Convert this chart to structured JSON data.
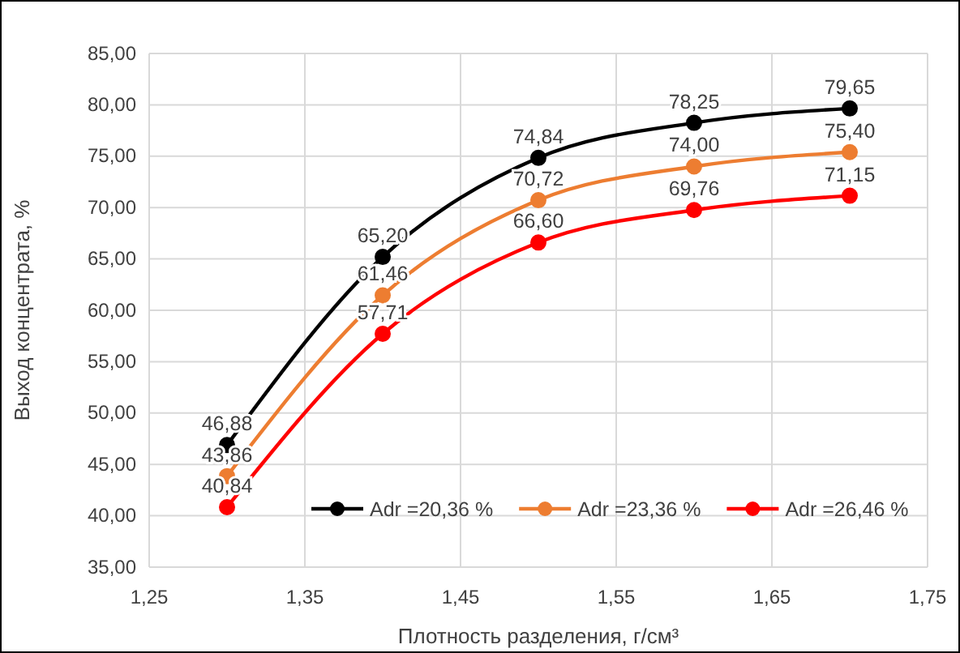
{
  "chart_data": {
    "type": "line",
    "xlabel": "Плотность разделения, г/см³",
    "ylabel": "Выход концентрата, %",
    "x": [
      1.3,
      1.4,
      1.5,
      1.6,
      1.7
    ],
    "xlim": [
      1.25,
      1.75
    ],
    "xticks": [
      {
        "value": 1.25,
        "label": "1,25"
      },
      {
        "value": 1.35,
        "label": "1,35"
      },
      {
        "value": 1.45,
        "label": "1,45"
      },
      {
        "value": 1.55,
        "label": "1,55"
      },
      {
        "value": 1.65,
        "label": "1,65"
      },
      {
        "value": 1.75,
        "label": "1,75"
      }
    ],
    "ylim": [
      35,
      85
    ],
    "yticks": [
      {
        "value": 35,
        "label": "35,00"
      },
      {
        "value": 40,
        "label": "40,00"
      },
      {
        "value": 45,
        "label": "45,00"
      },
      {
        "value": 50,
        "label": "50,00"
      },
      {
        "value": 55,
        "label": "55,00"
      },
      {
        "value": 60,
        "label": "60,00"
      },
      {
        "value": 65,
        "label": "65,00"
      },
      {
        "value": 70,
        "label": "70,00"
      },
      {
        "value": 75,
        "label": "75,00"
      },
      {
        "value": 80,
        "label": "80,00"
      },
      {
        "value": 85,
        "label": "85,00"
      }
    ],
    "series": [
      {
        "name": "Adr =20,36 %",
        "color": "#000000",
        "values": [
          46.88,
          65.2,
          74.84,
          78.25,
          79.65
        ],
        "value_labels": [
          "46,88",
          "65,20",
          "74,84",
          "78,25",
          "79,65"
        ]
      },
      {
        "name": "Adr =23,36 %",
        "color": "#ed7d31",
        "values": [
          43.86,
          61.46,
          70.72,
          74.0,
          75.4
        ],
        "value_labels": [
          "43,86",
          "61,46",
          "70,72",
          "74,00",
          "75,40"
        ]
      },
      {
        "name": "Adr =26,46 %",
        "color": "#ff0000",
        "values": [
          40.84,
          57.71,
          66.6,
          69.76,
          71.15
        ],
        "value_labels": [
          "40,84",
          "57,71",
          "66,60",
          "69,76",
          "71,15"
        ]
      }
    ],
    "grid": true,
    "legend": "bottom",
    "marker": "circle",
    "line_style": "solid"
  }
}
